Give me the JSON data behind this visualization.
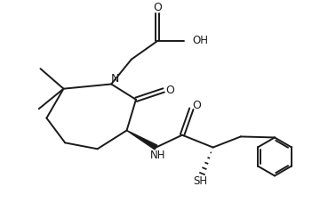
{
  "bg_color": "#ffffff",
  "line_color": "#1a1a1a",
  "line_width": 1.4,
  "font_size": 7.5,
  "fig_width": 3.51,
  "fig_height": 2.46,
  "dpi": 100,
  "xlim": [
    0,
    10
  ],
  "ylim": [
    0,
    7
  ]
}
